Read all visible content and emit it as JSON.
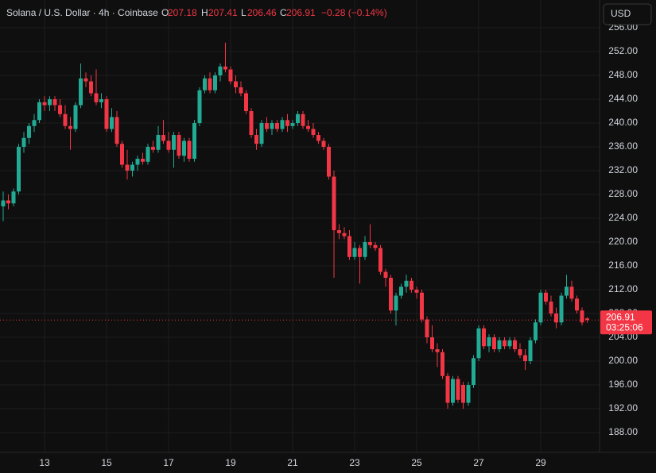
{
  "chart_data": {
    "type": "candlestick",
    "title": "Solana / U.S. Dollar · 4h · Coinbase",
    "ohlc_labels": [
      "O",
      "H",
      "L",
      "C"
    ],
    "change": "−0.28 (−0.14%)",
    "countdown": "03:25:06",
    "currency": "USD",
    "up_color": "#22ab94",
    "down_color": "#f23645",
    "grid": true,
    "categories": [
      null,
      null,
      null,
      null,
      null,
      null,
      null,
      null,
      "13",
      null,
      null,
      null,
      null,
      null,
      null,
      null,
      null,
      null,
      null,
      null,
      "15",
      null,
      null,
      null,
      null,
      null,
      null,
      null,
      null,
      null,
      null,
      null,
      "17",
      null,
      null,
      null,
      null,
      null,
      null,
      null,
      null,
      null,
      null,
      null,
      "19",
      null,
      null,
      null,
      null,
      null,
      null,
      null,
      null,
      null,
      null,
      null,
      "21",
      null,
      null,
      null,
      null,
      null,
      null,
      null,
      null,
      null,
      null,
      null,
      "23",
      null,
      null,
      null,
      null,
      null,
      null,
      null,
      null,
      null,
      null,
      null,
      "25",
      null,
      null,
      null,
      null,
      null,
      null,
      null,
      null,
      null,
      null,
      null,
      "27",
      null,
      null,
      null,
      null,
      null,
      null,
      null,
      null,
      null,
      null,
      null,
      "29",
      null,
      null,
      null,
      null,
      null,
      null,
      null,
      null,
      null
    ],
    "open": [
      226,
      227,
      226.5,
      228.5,
      236,
      237.5,
      239.5,
      240.5,
      243.5,
      243,
      244,
      243,
      241.5,
      239.5,
      239,
      243,
      247.5,
      247,
      245,
      243.5,
      244,
      239,
      241,
      236.5,
      233,
      232,
      233,
      234,
      233.5,
      236,
      235.5,
      238,
      237,
      235.5,
      238,
      234.5,
      237,
      234,
      240,
      245.5,
      247.5,
      245.5,
      248,
      249.5,
      249,
      247,
      246,
      245,
      242,
      238,
      236.5,
      240,
      239,
      240,
      239,
      240.5,
      239.5,
      240,
      241.5,
      239.5,
      239,
      238,
      237,
      236,
      231,
      222,
      221.5,
      221,
      217.5,
      219,
      217.5,
      220,
      219.5,
      219,
      215,
      214,
      208.5,
      211,
      212.5,
      213.5,
      212,
      211.5,
      207,
      204,
      202,
      201.5,
      197.5,
      193,
      197,
      196,
      193,
      196,
      200.5,
      205.5,
      202.5,
      204,
      202,
      203.5,
      202.5,
      203.5,
      202,
      201,
      200,
      203.5,
      206.5,
      211.5,
      210,
      208,
      206.5,
      211,
      212.5,
      210.5,
      208.5,
      207.18
    ],
    "high": [
      228.5,
      228,
      229,
      236.5,
      238.5,
      240,
      241.5,
      244,
      244.5,
      244.5,
      244.5,
      244,
      243,
      241,
      243.5,
      250,
      248.5,
      248,
      249,
      245,
      244.5,
      242.5,
      242,
      237,
      235.5,
      233.5,
      234.5,
      235,
      236.5,
      237,
      239.5,
      240.5,
      238.5,
      238.5,
      238.5,
      237.5,
      237.5,
      240.5,
      246,
      248,
      248.5,
      248.5,
      250,
      253.5,
      249.5,
      248,
      247,
      245.5,
      242.5,
      239,
      240.5,
      241,
      240.5,
      240.5,
      241,
      241.5,
      240.5,
      242,
      242,
      240.5,
      240,
      238.5,
      237.5,
      236.5,
      232,
      223,
      222.5,
      222,
      220,
      219.5,
      221,
      223,
      220,
      219.5,
      215.5,
      214.5,
      211.5,
      213,
      214.5,
      214,
      212.5,
      212,
      207.5,
      206,
      203,
      202,
      198,
      197.5,
      197.5,
      196.5,
      196.5,
      201,
      206,
      206,
      204.5,
      204.5,
      204,
      204,
      204,
      204,
      203,
      202,
      204,
      207,
      212,
      212,
      211,
      209,
      211.5,
      214.5,
      213.5,
      211,
      209,
      207.41
    ],
    "low": [
      223.5,
      225.5,
      226,
      228,
      235,
      236.5,
      238.5,
      240,
      242,
      242,
      242,
      241,
      239,
      235.5,
      238.5,
      242.5,
      246,
      244.5,
      243,
      242.5,
      238.5,
      238.5,
      236,
      232.5,
      230.5,
      231,
      232,
      233,
      233,
      235,
      235,
      236.5,
      235,
      232.5,
      234,
      233.5,
      233.5,
      233.5,
      239.5,
      245,
      245,
      245,
      247,
      248.5,
      246.5,
      245,
      244.5,
      241.5,
      237.5,
      235.5,
      236,
      238.5,
      238,
      238.5,
      238.5,
      238.5,
      239,
      239.5,
      239,
      238.5,
      237.5,
      236.5,
      235.5,
      230.5,
      214,
      220.5,
      220.5,
      217,
      217,
      213,
      217,
      219,
      218.5,
      214.5,
      212.5,
      208,
      206,
      210.5,
      211.5,
      211.5,
      210.5,
      206.5,
      203,
      201.5,
      199,
      197,
      192,
      192.5,
      193,
      192,
      192.5,
      195.5,
      200,
      202,
      201.5,
      201.5,
      201.5,
      202,
      202,
      201.5,
      200.5,
      198.5,
      199.5,
      203,
      206,
      209.5,
      207.5,
      205.5,
      206,
      210.5,
      210,
      208,
      206,
      206.46
    ],
    "close": [
      227,
      226.5,
      228.5,
      236,
      237.5,
      239.5,
      240.5,
      243.5,
      243,
      244,
      243,
      241.5,
      239.5,
      239,
      243,
      247.5,
      247,
      245,
      243.5,
      244,
      239,
      241,
      236.5,
      233,
      232,
      233,
      234,
      233.5,
      236,
      235.5,
      238,
      237,
      235.5,
      238,
      234.5,
      237,
      234,
      240,
      245.5,
      247.5,
      245.5,
      248,
      249.5,
      249,
      247,
      246,
      245,
      242,
      238,
      236.5,
      240,
      239,
      240,
      239,
      240.5,
      239.5,
      240,
      241.5,
      239.5,
      239,
      238,
      237,
      236,
      231,
      222,
      221.5,
      221,
      217.5,
      219,
      217.5,
      220,
      219.5,
      219,
      215,
      214,
      208.5,
      211,
      212.5,
      213.5,
      212,
      211.5,
      207,
      204,
      202,
      201.5,
      197.5,
      193,
      197,
      193.5,
      193,
      196,
      200.5,
      205.5,
      202.5,
      204,
      202,
      203.5,
      202.5,
      203.5,
      202,
      201,
      200,
      203.5,
      206.5,
      211.5,
      210,
      208,
      206.5,
      211,
      212.5,
      210.5,
      208.5,
      206.5,
      206.91
    ],
    "ylim": [
      184.67,
      260.67
    ],
    "yticks": [
      {
        "value": 188,
        "label": "188.00"
      },
      {
        "value": 192,
        "label": "192.00"
      },
      {
        "value": 196,
        "label": "196.00"
      },
      {
        "value": 200,
        "label": "200.00"
      },
      {
        "value": 204,
        "label": "204.00"
      },
      {
        "value": 208,
        "label": "208.00"
      },
      {
        "value": 212,
        "label": "212.00"
      },
      {
        "value": 216,
        "label": "216.00"
      },
      {
        "value": 220,
        "label": "220.00"
      },
      {
        "value": 224,
        "label": "224.00"
      },
      {
        "value": 228,
        "label": "228.00"
      },
      {
        "value": 232,
        "label": "232.00"
      },
      {
        "value": 236,
        "label": "236.00"
      },
      {
        "value": 240,
        "label": "240.00"
      },
      {
        "value": 244,
        "label": "244.00"
      },
      {
        "value": 248,
        "label": "248.00"
      },
      {
        "value": 252,
        "label": "252.00"
      },
      {
        "value": 256,
        "label": "256.00"
      }
    ]
  }
}
